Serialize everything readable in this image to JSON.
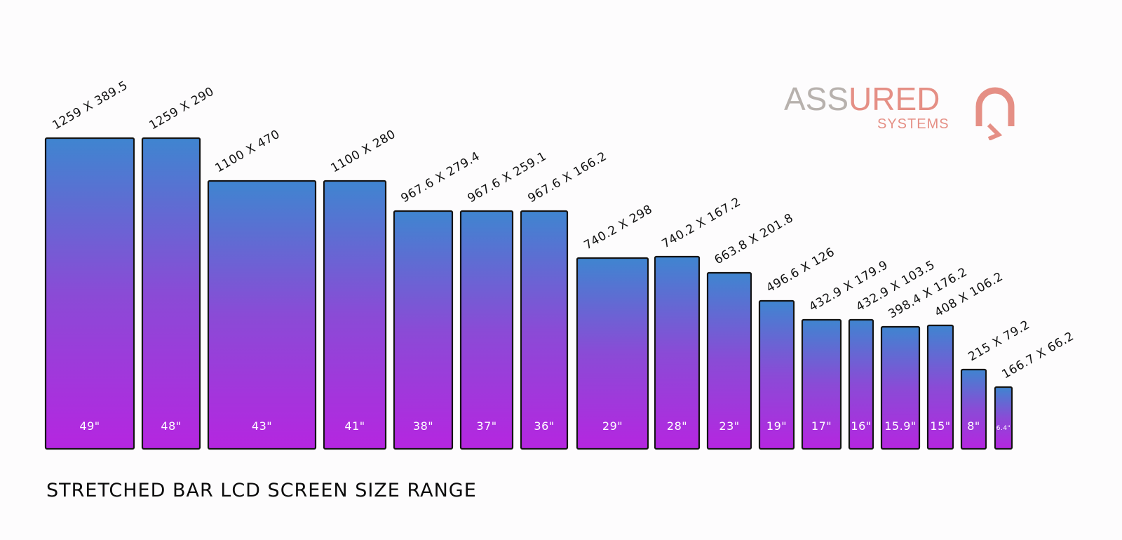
{
  "chart_data": {
    "type": "bar",
    "title": "STRETCHED BAR LCD SCREEN SIZE RANGE",
    "xlabel": "",
    "ylabel": "",
    "series_note": "bars ordered by screen size; bar height follows active-area width (mm)",
    "bars": [
      {
        "size": "49\"",
        "dimensions": "1259 X 389.5",
        "width_mm": 1259,
        "height_mm": 389.5
      },
      {
        "size": "48\"",
        "dimensions": "1259 X 290",
        "width_mm": 1259,
        "height_mm": 290
      },
      {
        "size": "43\"",
        "dimensions": "1100 X 470",
        "width_mm": 1100,
        "height_mm": 470
      },
      {
        "size": "41\"",
        "dimensions": "1100 X 280",
        "width_mm": 1100,
        "height_mm": 280
      },
      {
        "size": "38\"",
        "dimensions": "967.6 X 279.4",
        "width_mm": 967.6,
        "height_mm": 279.4
      },
      {
        "size": "37\"",
        "dimensions": "967.6 X 259.1",
        "width_mm": 967.6,
        "height_mm": 259.1
      },
      {
        "size": "36\"",
        "dimensions": "967.6 X 166.2",
        "width_mm": 967.6,
        "height_mm": 166.2
      },
      {
        "size": "29\"",
        "dimensions": "740.2 X 298",
        "width_mm": 740.2,
        "height_mm": 298
      },
      {
        "size": "28\"",
        "dimensions": "740.2 X 167.2",
        "width_mm": 740.2,
        "height_mm": 167.2
      },
      {
        "size": "23\"",
        "dimensions": "663.8 X 201.8",
        "width_mm": 663.8,
        "height_mm": 201.8
      },
      {
        "size": "19\"",
        "dimensions": "496.6 X 126",
        "width_mm": 496.6,
        "height_mm": 126
      },
      {
        "size": "17\"",
        "dimensions": "432.9 X 179.9",
        "width_mm": 432.9,
        "height_mm": 179.9
      },
      {
        "size": "16\"",
        "dimensions": "432.9 X 103.5",
        "width_mm": 432.9,
        "height_mm": 103.5
      },
      {
        "size": "15.9\"",
        "dimensions": "398.4 X 176.2",
        "width_mm": 398.4,
        "height_mm": 176.2
      },
      {
        "size": "15\"",
        "dimensions": "408 X 106.2",
        "width_mm": 408,
        "height_mm": 106.2
      },
      {
        "size": "8\"",
        "dimensions": "215 X 79.2",
        "width_mm": 215,
        "height_mm": 79.2
      },
      {
        "size": "6.4\"",
        "dimensions": "166.7 X 66.2",
        "width_mm": 166.7,
        "height_mm": 66.2
      }
    ]
  },
  "logo": {
    "word_part1": "ASS",
    "word_part2": "URED",
    "subtitle": "SYSTEMS"
  },
  "colors": {
    "bar_top": "#3f85d0",
    "bar_mid": "#8a4bd6",
    "bar_bottom": "#b526e0",
    "bar_border": "#141414",
    "logo_grey": "#b7b1ad",
    "logo_coral": "#e58f85"
  }
}
